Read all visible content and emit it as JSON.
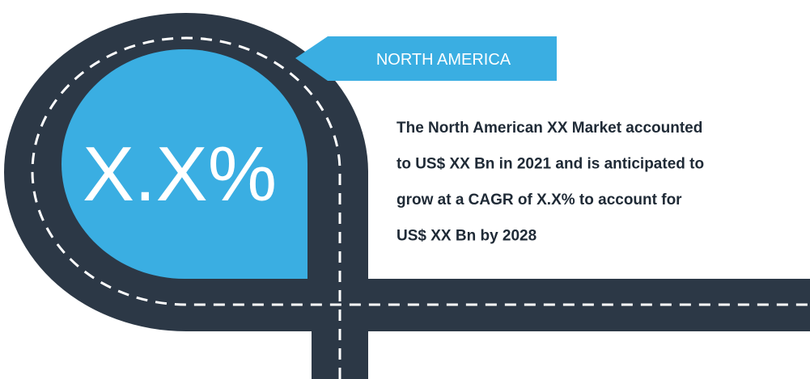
{
  "badge": "NORTH AMERICA",
  "headline_value": "X.X%",
  "paragraph": {
    "lines": [
      "The North American XX Market accounted",
      "to US$ XX Bn in 2021 and is  anticipated to",
      "grow at a CAGR of X.X% to account for",
      "US$ XX Bn by 2028"
    ]
  }
}
